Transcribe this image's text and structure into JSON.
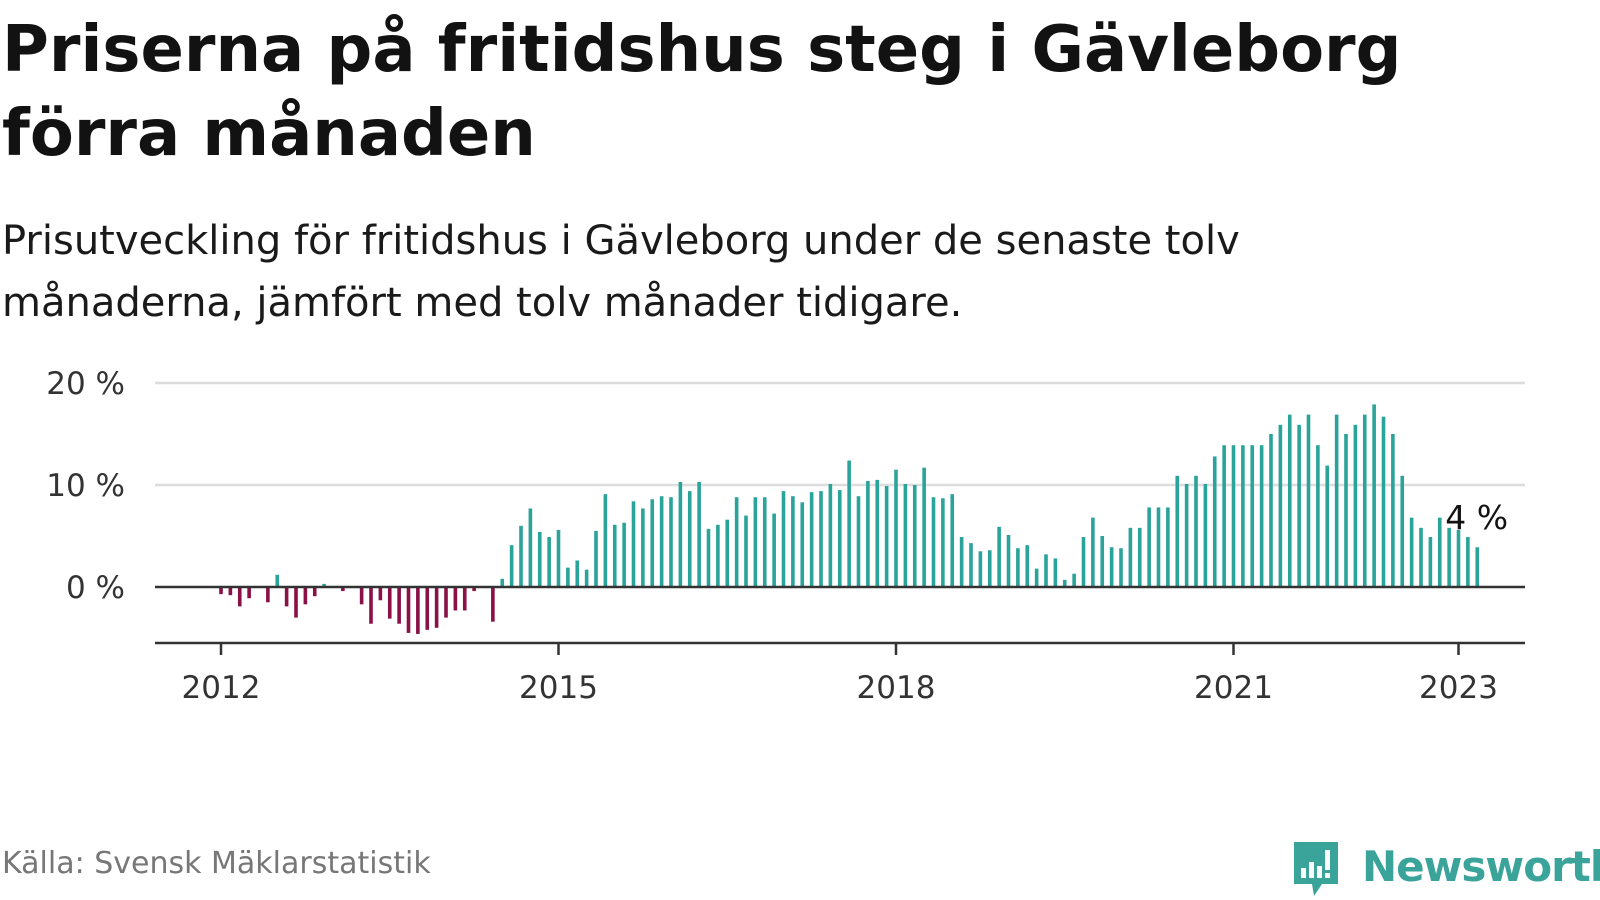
{
  "title": "Priserna på fritidshus steg i Gävleborg förra månaden",
  "subtitle": "Prisutveckling för fritidshus i Gävleborg under de senaste tolv månaderna, jämfört med tolv månader tidigare.",
  "source": "Källa: Svensk Mäklarstatistik",
  "brand": "Newsworthy",
  "colors": {
    "positive": "#2aa39a",
    "negative": "#8a1046",
    "grid": "#dddddd",
    "axis": "#333333",
    "brand": "#3aa39a"
  },
  "chart_data": {
    "type": "bar",
    "start": "2012-01",
    "ylim": [
      -5.5,
      20
    ],
    "yticks": [
      0,
      10,
      20
    ],
    "ytick_labels": [
      "0 %",
      "10 %",
      "20 %"
    ],
    "xticks": [
      "2012",
      "2015",
      "2018",
      "2021",
      "2023"
    ],
    "annotation": "4 %",
    "values": [
      -0.7,
      -0.8,
      -1.9,
      -1.1,
      null,
      -1.5,
      1.2,
      -1.9,
      -3.0,
      -1.7,
      -0.9,
      0.3,
      null,
      -0.4,
      null,
      -1.7,
      -3.6,
      -1.3,
      -3.1,
      -3.6,
      -4.5,
      -4.6,
      -4.2,
      -4.0,
      -3.0,
      -2.3,
      -2.3,
      -0.4,
      null,
      -3.4,
      0.8,
      4.1,
      6.0,
      7.7,
      5.4,
      4.9,
      5.6,
      1.9,
      2.6,
      1.7,
      5.5,
      9.1,
      6.1,
      6.3,
      8.4,
      7.7,
      8.6,
      8.9,
      8.8,
      10.3,
      9.4,
      10.3,
      5.7,
      6.1,
      6.6,
      8.8,
      7.0,
      8.8,
      8.8,
      7.2,
      9.4,
      8.9,
      8.3,
      9.3,
      9.4,
      10.1,
      9.5,
      12.4,
      8.9,
      10.4,
      10.5,
      9.9,
      11.5,
      10.1,
      10.0,
      11.7,
      8.8,
      8.7,
      9.1,
      4.9,
      4.3,
      3.5,
      3.6,
      5.9,
      5.1,
      3.8,
      4.1,
      1.8,
      3.2,
      2.8,
      0.7,
      1.3,
      4.9,
      6.8,
      5.0,
      3.9,
      3.8,
      5.8,
      5.8,
      7.8,
      7.8,
      7.8,
      10.9,
      10.1,
      10.9,
      10.1,
      12.8,
      13.9,
      13.9,
      13.9,
      13.9,
      13.9,
      15.0,
      15.9,
      16.9,
      15.9,
      16.9,
      13.9,
      11.9,
      16.9,
      15.0,
      15.9,
      16.9,
      17.9,
      16.7,
      15.0,
      10.9,
      6.8,
      5.8,
      4.9,
      6.8,
      5.8,
      5.6,
      4.9,
      3.9
    ]
  }
}
